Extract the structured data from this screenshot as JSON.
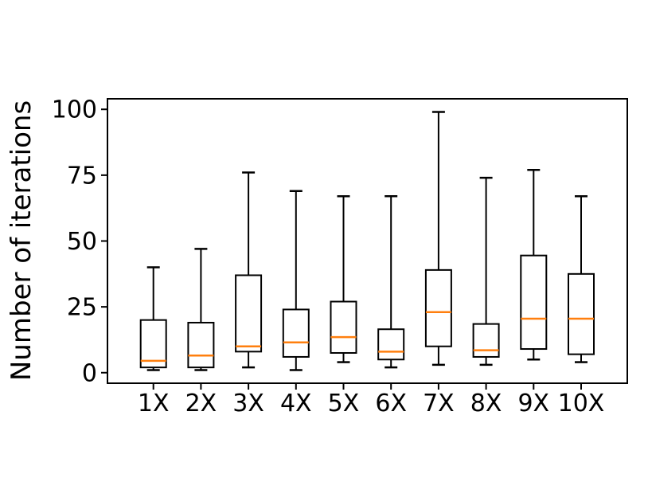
{
  "chart_data": {
    "type": "box",
    "title": "",
    "xlabel": "",
    "ylabel": "Number of iterations",
    "categories": [
      "1X",
      "2X",
      "3X",
      "4X",
      "5X",
      "6X",
      "7X",
      "8X",
      "9X",
      "10X"
    ],
    "yticks": [
      0,
      25,
      50,
      75,
      100
    ],
    "ylim": [
      -4,
      104
    ],
    "grid": false,
    "legend": "none",
    "colors": {
      "box_stroke": "#000000",
      "median": "#ff7f0e",
      "background": "#ffffff"
    },
    "series": [
      {
        "label": "1X",
        "whislo": 1,
        "q1": 2,
        "med": 4.5,
        "q3": 20,
        "whishi": 40
      },
      {
        "label": "2X",
        "whislo": 1,
        "q1": 2,
        "med": 6.5,
        "q3": 19,
        "whishi": 47
      },
      {
        "label": "3X",
        "whislo": 2,
        "q1": 8,
        "med": 10,
        "q3": 37,
        "whishi": 76
      },
      {
        "label": "4X",
        "whislo": 1,
        "q1": 6,
        "med": 11.5,
        "q3": 24,
        "whishi": 69
      },
      {
        "label": "5X",
        "whislo": 4,
        "q1": 7.5,
        "med": 13.5,
        "q3": 27,
        "whishi": 67
      },
      {
        "label": "6X",
        "whislo": 2,
        "q1": 5,
        "med": 8,
        "q3": 16.5,
        "whishi": 67
      },
      {
        "label": "7X",
        "whislo": 3,
        "q1": 10,
        "med": 23,
        "q3": 39,
        "whishi": 99
      },
      {
        "label": "8X",
        "whislo": 3,
        "q1": 6,
        "med": 8.5,
        "q3": 18.5,
        "whishi": 74
      },
      {
        "label": "9X",
        "whislo": 5,
        "q1": 9,
        "med": 20.5,
        "q3": 44.5,
        "whishi": 77
      },
      {
        "label": "10X",
        "whislo": 4,
        "q1": 7,
        "med": 20.5,
        "q3": 37.5,
        "whishi": 67
      }
    ]
  }
}
